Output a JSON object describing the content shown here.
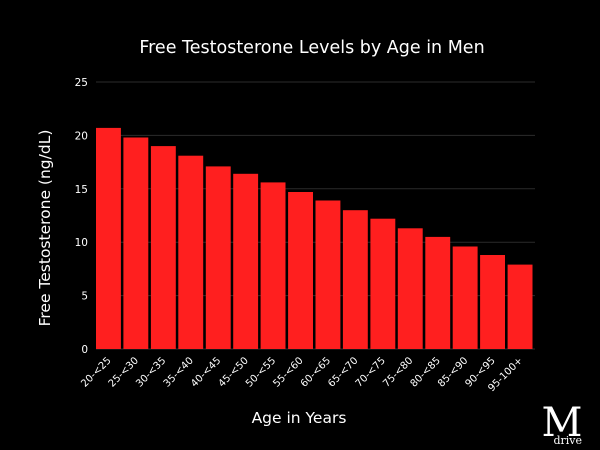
{
  "chart_data": {
    "type": "bar",
    "title": "Free Testosterone Levels by Age in Men",
    "xlabel": "Age in Years",
    "ylabel": "Free Testosterone (ng/dL)",
    "ylim": [
      0,
      25
    ],
    "yticks": [
      0,
      5,
      10,
      15,
      20,
      25
    ],
    "grid": true,
    "categories": [
      "20-<25",
      "25-<30",
      "30-<35",
      "35-<40",
      "40-<45",
      "45-<50",
      "50-<55",
      "55-<60",
      "60-<65",
      "65-<70",
      "70-<75",
      "75-<80",
      "80-<85",
      "85-<90",
      "90-<95",
      "95-100+"
    ],
    "values": [
      20.7,
      19.8,
      19.0,
      18.1,
      17.1,
      16.4,
      15.6,
      14.7,
      13.9,
      13.0,
      12.2,
      11.3,
      10.5,
      9.6,
      8.8,
      7.9
    ],
    "bar_color": "#ff1f1f",
    "background": "#000000"
  },
  "logo": {
    "mark": "M",
    "sub": "drive"
  }
}
